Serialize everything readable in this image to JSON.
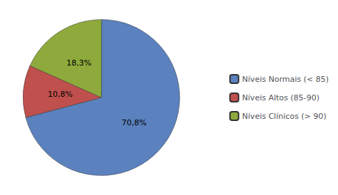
{
  "chart_data": {
    "type": "pie",
    "categories": [
      "Níveis Normais (< 85)",
      "Níveis Altos (85-90)",
      "Níveis Clínicos (> 90)"
    ],
    "values": [
      70.8,
      10.8,
      18.3
    ],
    "value_labels": [
      "70,8%",
      "10,8%",
      "18,3%"
    ],
    "colors": [
      "#5B81BE",
      "#C0504D",
      "#8EAA3C"
    ],
    "data_labels": true,
    "legend": "right"
  }
}
